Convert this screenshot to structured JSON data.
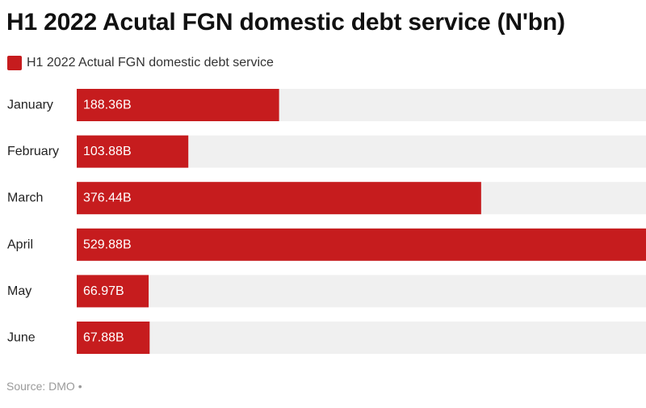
{
  "title": "H1 2022 Acutal FGN domestic debt service (N'bn)",
  "legend": {
    "label": "H1 2022 Actual FGN domestic debt service",
    "color": "#c61c1e"
  },
  "track_color": "#f0f0f0",
  "source": "Source: DMO •",
  "chart_data": {
    "type": "bar",
    "orientation": "horizontal",
    "title": "H1 2022 Acutal FGN domestic debt service (N'bn)",
    "xlabel": "",
    "ylabel": "",
    "categories": [
      "January",
      "February",
      "March",
      "April",
      "May",
      "June"
    ],
    "series": [
      {
        "name": "H1 2022 Actual FGN domestic debt service",
        "values": [
          188.36,
          103.88,
          376.44,
          529.88,
          66.97,
          67.88
        ],
        "labels": [
          "188.36B",
          "103.88B",
          "376.44B",
          "529.88B",
          "66.97B",
          "67.88B"
        ]
      }
    ],
    "xlim": [
      0,
      529.88
    ],
    "grid": false,
    "legend_position": "top-left"
  }
}
